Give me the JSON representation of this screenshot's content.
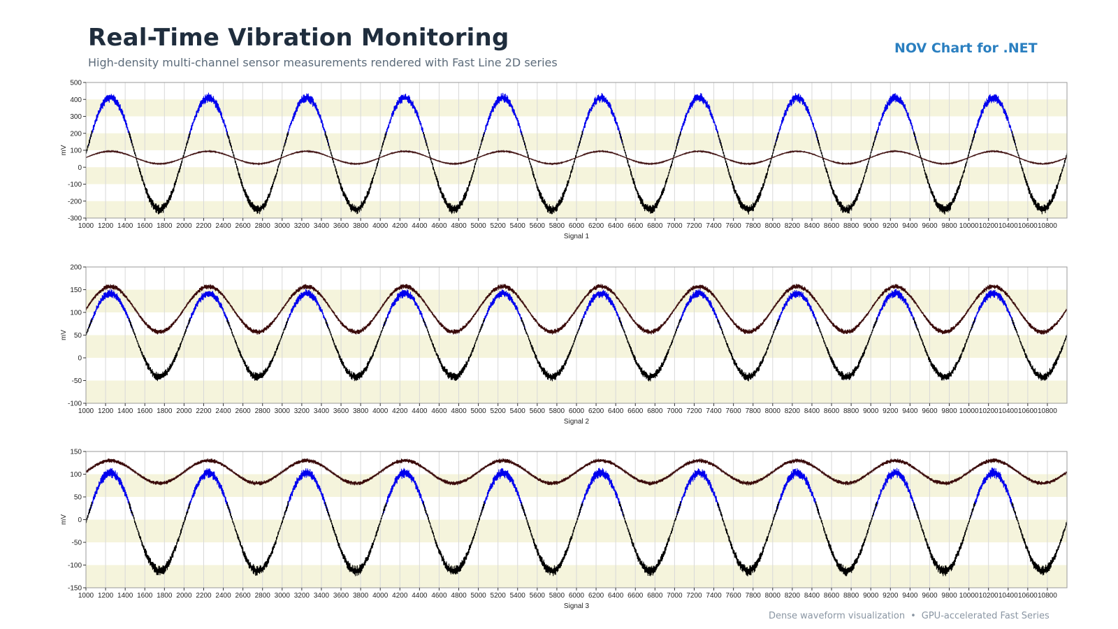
{
  "header": {
    "title": "Real-Time Vibration Monitoring",
    "subtitle": "High-density multi-channel sensor measurements rendered with Fast Line 2D series",
    "brand": "NOV Chart for .NET"
  },
  "footer": {
    "left": "Dense waveform visualization",
    "separator": "•",
    "right": "GPU-accelerated Fast Series"
  },
  "colors": {
    "band": "#f5f4dc",
    "plot_bg": "#ffffff",
    "grid": "#d8d8d8",
    "axis": "#333333",
    "series_blue": "#0000ee",
    "series_black": "#000000",
    "series_darkred": "#3a0a0a"
  },
  "chart_data": [
    {
      "type": "line",
      "xlabel": "Signal 1",
      "ylabel": "mV",
      "xlim": [
        1000,
        11000
      ],
      "ylim": [
        -300,
        500
      ],
      "x_ticks": [
        1000,
        1200,
        1400,
        1600,
        1800,
        2000,
        2200,
        2400,
        2600,
        2800,
        3000,
        3200,
        3400,
        3600,
        3800,
        4000,
        4200,
        4400,
        4600,
        4800,
        5000,
        5200,
        5400,
        5600,
        5800,
        6000,
        6200,
        6400,
        6600,
        6800,
        7000,
        7200,
        7400,
        7600,
        7800,
        8000,
        8200,
        8400,
        8600,
        8800,
        9000,
        9200,
        9400,
        9600,
        9800,
        10000,
        10200,
        10400,
        10600,
        10800
      ],
      "y_ticks": [
        -300,
        -200,
        -100,
        0,
        100,
        200,
        300,
        400,
        500
      ],
      "grid": true,
      "period": 1000,
      "series": [
        {
          "color": "#0000ee",
          "description": "upper lobe of main wave",
          "center": 80,
          "amplitude": 330,
          "noise": 30,
          "peak_x": 1250,
          "clip": "above"
        },
        {
          "color": "#000000",
          "description": "lower lobe of main wave",
          "center": 80,
          "amplitude": 330,
          "noise": 30,
          "peak_x": 1250,
          "clip": "below"
        },
        {
          "color": "#3a0a0a",
          "description": "secondary wave",
          "center": 57,
          "amplitude": 37,
          "noise": 4,
          "peak_x": 1250
        }
      ]
    },
    {
      "type": "line",
      "xlabel": "Signal 2",
      "ylabel": "mV",
      "xlim": [
        1000,
        11000
      ],
      "ylim": [
        -100,
        200
      ],
      "x_ticks": [
        1000,
        1200,
        1400,
        1600,
        1800,
        2000,
        2200,
        2400,
        2600,
        2800,
        3000,
        3200,
        3400,
        3600,
        3800,
        4000,
        4200,
        4400,
        4600,
        4800,
        5000,
        5200,
        5400,
        5600,
        5800,
        6000,
        6200,
        6400,
        6600,
        6800,
        7000,
        7200,
        7400,
        7600,
        7800,
        8000,
        8200,
        8400,
        8600,
        8800,
        9000,
        9200,
        9400,
        9600,
        9800,
        10000,
        10200,
        10400,
        10600,
        10800
      ],
      "y_ticks": [
        -100,
        -50,
        0,
        50,
        100,
        150,
        200
      ],
      "grid": true,
      "period": 1000,
      "series": [
        {
          "color": "#3a0a0a",
          "description": "secondary wave",
          "center": 107,
          "amplitude": 50,
          "noise": 6,
          "peak_x": 1250
        },
        {
          "color": "#0000ee",
          "description": "upper lobe of main wave",
          "center": 50,
          "amplitude": 92,
          "noise": 10,
          "peak_x": 1250,
          "clip": "above"
        },
        {
          "color": "#000000",
          "description": "lower lobe of main wave",
          "center": 50,
          "amplitude": 92,
          "noise": 10,
          "peak_x": 1250,
          "clip": "below"
        }
      ]
    },
    {
      "type": "line",
      "xlabel": "Signal 3",
      "ylabel": "mV",
      "xlim": [
        1000,
        11000
      ],
      "ylim": [
        -150,
        150
      ],
      "x_ticks": [
        1000,
        1200,
        1400,
        1600,
        1800,
        2000,
        2200,
        2400,
        2600,
        2800,
        3000,
        3200,
        3400,
        3600,
        3800,
        4000,
        4200,
        4400,
        4600,
        4800,
        5000,
        5200,
        5400,
        5600,
        5800,
        6000,
        6200,
        6400,
        6600,
        6800,
        7000,
        7200,
        7400,
        7600,
        7800,
        8000,
        8200,
        8400,
        8600,
        8800,
        9000,
        9200,
        9400,
        9600,
        9800,
        10000,
        10200,
        10400,
        10600,
        10800
      ],
      "y_ticks": [
        -150,
        -100,
        -50,
        0,
        50,
        100,
        150
      ],
      "grid": true,
      "period": 1000,
      "series": [
        {
          "color": "#3a0a0a",
          "description": "secondary wave",
          "center": 105,
          "amplitude": 25,
          "noise": 5,
          "peak_x": 1250
        },
        {
          "color": "#0000ee",
          "description": "upper lobe of main wave",
          "center": -5,
          "amplitude": 108,
          "noise": 12,
          "peak_x": 1250,
          "clip": "above"
        },
        {
          "color": "#000000",
          "description": "lower lobe of main wave",
          "center": -5,
          "amplitude": 108,
          "noise": 12,
          "peak_x": 1250,
          "clip": "below"
        }
      ]
    }
  ]
}
